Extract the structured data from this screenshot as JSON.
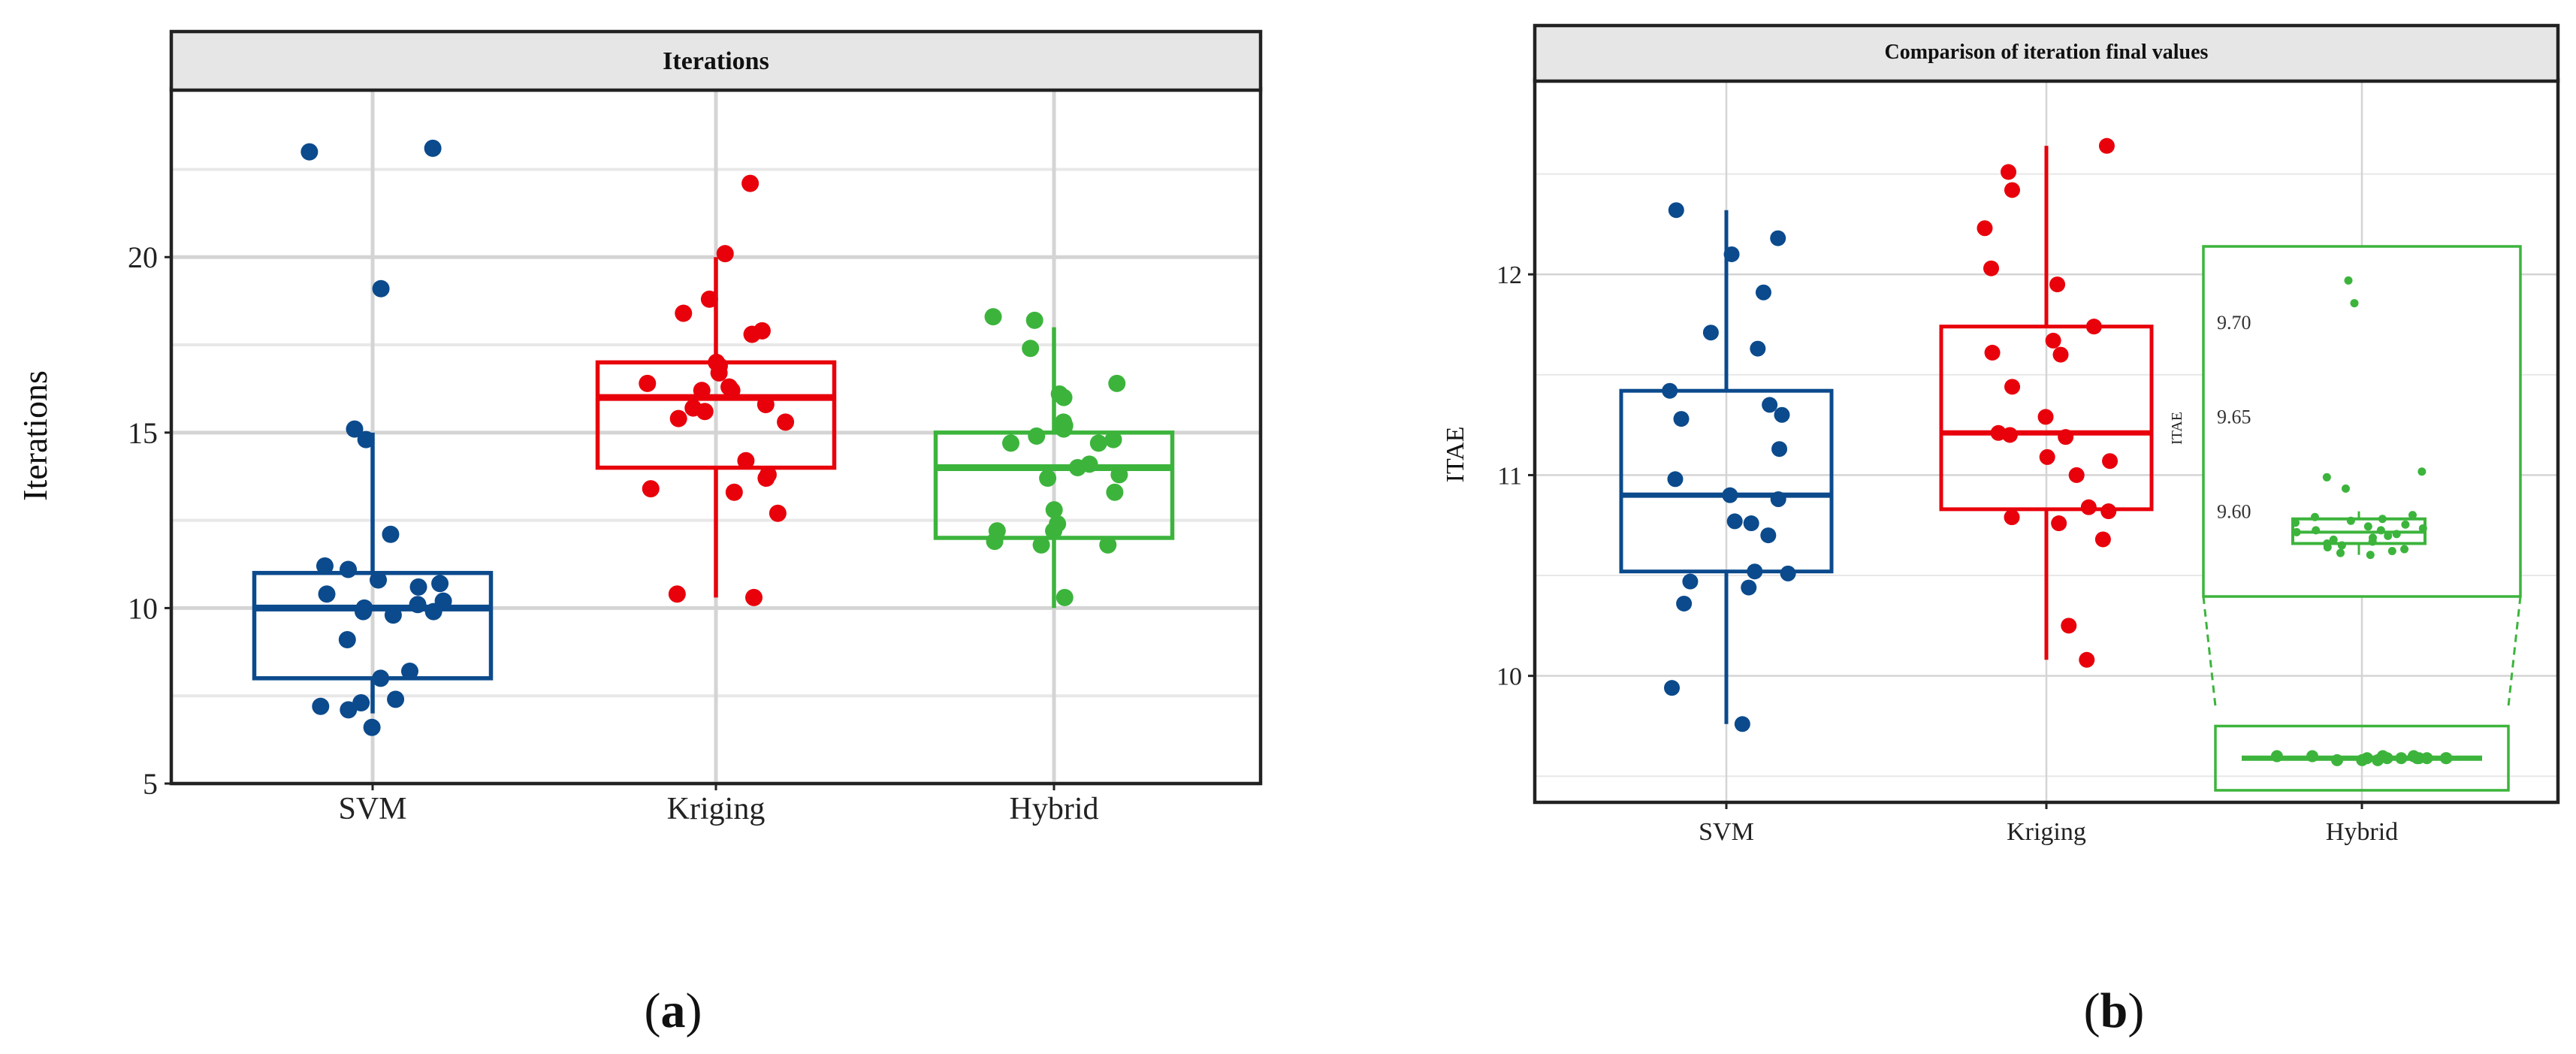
{
  "panels": {
    "a": {
      "label_text": "(",
      "label_bold": "a",
      "label_close": ")"
    },
    "b": {
      "label_text": "(",
      "label_bold": "b",
      "label_close": ")"
    }
  },
  "colors": {
    "svm": "#0b4a8c",
    "kriging": "#e8000b",
    "hybrid": "#3cb43c",
    "strip_fill": "#e6e6e6",
    "grid": "#d4d4d4"
  },
  "chart_data": [
    {
      "type": "boxplot",
      "title": "Iterations",
      "xlabel": "",
      "ylabel": "Iterations",
      "ylim": [
        5,
        24.8
      ],
      "yticks": [
        5,
        10,
        15,
        20
      ],
      "categories": [
        "SVM",
        "Kriging",
        "Hybrid"
      ],
      "grid": true,
      "boxes": [
        {
          "name": "SVM",
          "q1": 8,
          "median": 10,
          "q3": 11,
          "whisker_low": 7,
          "whisker_high": 15
        },
        {
          "name": "Kriging",
          "q1": 14,
          "median": 16,
          "q3": 17,
          "whisker_low": 10.3,
          "whisker_high": 20
        },
        {
          "name": "Hybrid",
          "q1": 12,
          "median": 14,
          "q3": 15,
          "whisker_low": 10,
          "whisker_high": 18
        }
      ],
      "points": [
        {
          "category": "SVM",
          "values": [
            23.1,
            23.0,
            19.1,
            15.1,
            14.8,
            12.1,
            11.2,
            11.1,
            10.8,
            10.7,
            10.6,
            10.4,
            10.2,
            10.1,
            10.0,
            9.9,
            9.9,
            9.8,
            9.1,
            8.2,
            8.0,
            7.4,
            7.3,
            7.2,
            7.1,
            6.6
          ]
        },
        {
          "category": "Kriging",
          "values": [
            22.1,
            20.1,
            18.8,
            18.4,
            17.9,
            17.8,
            17.0,
            16.9,
            16.7,
            16.4,
            16.3,
            16.2,
            16.2,
            15.8,
            15.7,
            15.6,
            15.4,
            15.3,
            14.2,
            13.8,
            13.7,
            13.4,
            13.3,
            12.7,
            10.4,
            10.3
          ]
        },
        {
          "category": "Hybrid",
          "values": [
            18.3,
            18.2,
            17.4,
            16.4,
            16.1,
            16.0,
            15.3,
            15.2,
            15.1,
            14.9,
            14.8,
            14.7,
            14.7,
            14.1,
            14.0,
            13.8,
            13.7,
            13.3,
            12.8,
            12.4,
            12.2,
            12.2,
            11.9,
            11.8,
            11.8,
            10.3
          ]
        }
      ]
    },
    {
      "type": "boxplot",
      "title": "Comparison of iteration final values",
      "xlabel": "",
      "ylabel": "ITAE",
      "ylim": [
        9.37,
        12.97
      ],
      "yticks": [
        10,
        11,
        12
      ],
      "categories": [
        "SVM",
        "Kriging",
        "Hybrid"
      ],
      "grid": true,
      "boxes": [
        {
          "name": "SVM",
          "q1": 10.52,
          "median": 10.9,
          "q3": 11.42,
          "whisker_low": 9.76,
          "whisker_high": 12.32
        },
        {
          "name": "Kriging",
          "q1": 10.83,
          "median": 11.21,
          "q3": 11.74,
          "whisker_low": 10.08,
          "whisker_high": 12.64
        },
        {
          "name": "Hybrid",
          "q1": 9.58,
          "median": 9.59,
          "q3": 9.6,
          "whisker_low": 9.578,
          "whisker_high": 9.602
        }
      ],
      "points": [
        {
          "category": "SVM",
          "values": [
            12.32,
            12.18,
            12.1,
            11.91,
            11.71,
            11.63,
            11.42,
            11.35,
            11.3,
            11.28,
            11.13,
            10.98,
            10.9,
            10.88,
            10.77,
            10.76,
            10.7,
            10.52,
            10.51,
            10.47,
            10.44,
            10.36,
            9.94,
            9.76
          ]
        },
        {
          "category": "Kriging",
          "values": [
            12.64,
            12.51,
            12.42,
            12.23,
            12.03,
            11.95,
            11.74,
            11.67,
            11.61,
            11.6,
            11.44,
            11.29,
            11.21,
            11.2,
            11.19,
            11.09,
            11.07,
            11.0,
            10.84,
            10.82,
            10.79,
            10.76,
            10.68,
            10.25,
            10.08
          ]
        },
        {
          "category": "Hybrid",
          "values": [
            9.6,
            9.6,
            9.59,
            9.59,
            9.59,
            9.59,
            9.59,
            9.59,
            9.58,
            9.58,
            9.58,
            9.59,
            9.6,
            9.6,
            9.59
          ]
        }
      ],
      "inset": {
        "ylabel": "ITAE",
        "ylim": [
          9.555,
          9.74
        ],
        "yticks": [
          9.6,
          9.65,
          9.7
        ],
        "box": {
          "q1": 9.583,
          "median": 9.589,
          "q3": 9.596,
          "whisker_low": 9.577,
          "whisker_high": 9.6
        },
        "points": [
          9.722,
          9.71,
          9.621,
          9.618,
          9.612,
          9.598,
          9.597,
          9.596,
          9.595,
          9.594,
          9.593,
          9.592,
          9.591,
          9.59,
          9.59,
          9.589,
          9.588,
          9.587,
          9.586,
          9.585,
          9.584,
          9.583,
          9.582,
          9.581,
          9.58,
          9.579,
          9.578,
          9.577
        ]
      }
    }
  ]
}
